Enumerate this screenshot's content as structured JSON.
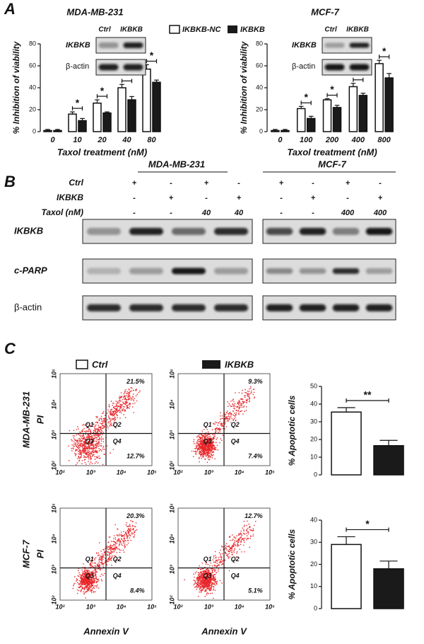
{
  "labels": {
    "a": "A",
    "b": "B",
    "c": "C"
  },
  "chart_data": [
    {
      "type": "bar",
      "title": "MDA-MB-231",
      "y_label": "% Inhibition of viability",
      "x_label": "Taxol treatment (nM)",
      "categories": [
        "0",
        "10",
        "20",
        "40",
        "80"
      ],
      "series": [
        {
          "name": "IKBKB-NC",
          "color": "#ffffff",
          "values": [
            1,
            16,
            26,
            40,
            57
          ],
          "errors": [
            1,
            2,
            3,
            3,
            4
          ]
        },
        {
          "name": "IKBKB",
          "color": "#1a1a1a",
          "values": [
            1,
            10,
            17,
            29,
            45
          ],
          "errors": [
            1,
            2,
            1,
            3,
            2
          ]
        }
      ],
      "ylim": [
        0,
        80
      ],
      "yticks": [
        0,
        20,
        40,
        60,
        80
      ],
      "annotations": [
        "*",
        "*",
        "*",
        "*"
      ]
    },
    {
      "type": "bar",
      "title": "MCF-7",
      "y_label": "% Inhibition of viability",
      "x_label": "Taxol treatment (nM)",
      "categories": [
        "0",
        "100",
        "200",
        "400",
        "800"
      ],
      "series": [
        {
          "color": "#ffffff",
          "values": [
            1,
            21,
            29,
            41,
            62
          ],
          "errors": [
            1,
            2,
            1,
            3,
            3
          ]
        },
        {
          "color": "#1a1a1a",
          "values": [
            1,
            12,
            22,
            33,
            49
          ],
          "errors": [
            1,
            2,
            2,
            2,
            4
          ]
        }
      ],
      "ylim": [
        0,
        80
      ],
      "yticks": [
        0,
        20,
        40,
        60,
        80
      ],
      "annotations": [
        "*",
        "*",
        "*",
        "*"
      ]
    },
    {
      "type": "bar",
      "y_label": "% Apoptotic cells",
      "series": [
        {
          "name": "Ctrl",
          "color": "#ffffff",
          "values": [
            35.5
          ],
          "errors": [
            2.5
          ]
        },
        {
          "name": "IKBKB",
          "color": "#1a1a1a",
          "values": [
            16.5
          ],
          "errors": [
            3
          ]
        }
      ],
      "ylim": [
        0,
        50
      ],
      "yticks": [
        0,
        10,
        20,
        30,
        40,
        50
      ],
      "annotations": [
        "**"
      ]
    },
    {
      "type": "bar",
      "y_label": "% Apoptotic cells",
      "series": [
        {
          "color": "#ffffff",
          "values": [
            29
          ],
          "errors": [
            3.5
          ]
        },
        {
          "color": "#1a1a1a",
          "values": [
            18
          ],
          "errors": [
            3.5
          ]
        }
      ],
      "ylim": [
        0,
        40
      ],
      "yticks": [
        0,
        10,
        20,
        30,
        40
      ],
      "annotations": [
        "*"
      ]
    }
  ],
  "inset": {
    "columns": [
      "Ctrl",
      "IKBKB"
    ],
    "rows": [
      "IKBKB",
      "β-actin"
    ]
  },
  "blot": {
    "conditions": [
      {
        "name": "Ctrl",
        "values": [
          [
            "+",
            "-",
            "+",
            "-"
          ],
          [
            "+",
            "-",
            "+",
            "-"
          ]
        ]
      },
      {
        "name": "IKBKB",
        "values": [
          [
            "-",
            "+",
            "-",
            "+"
          ],
          [
            "-",
            "+",
            "-",
            "+"
          ]
        ]
      },
      {
        "name": "Taxol (nM)",
        "values": [
          [
            "-",
            "-",
            "40",
            "40"
          ],
          [
            "-",
            "-",
            "400",
            "400"
          ]
        ]
      }
    ],
    "rows": [
      "IKBKB",
      "c-PARP",
      "β-actin"
    ]
  },
  "flow": {
    "y_label": "PI",
    "x_label": "Annexin V",
    "ticks": [
      "10²",
      "10³",
      "10⁴",
      "10⁵"
    ],
    "quadrants": [
      "Q1",
      "Q2",
      "Q3",
      "Q4"
    ],
    "plots": [
      {
        "q2": "21.5%",
        "q4": "12.7%"
      },
      {
        "q2": "9.3%",
        "q4": "7.4%"
      },
      {
        "q2": "20.3%",
        "q4": "8.4%"
      },
      {
        "q2": "12.7%",
        "q4": "5.1%"
      }
    ]
  }
}
